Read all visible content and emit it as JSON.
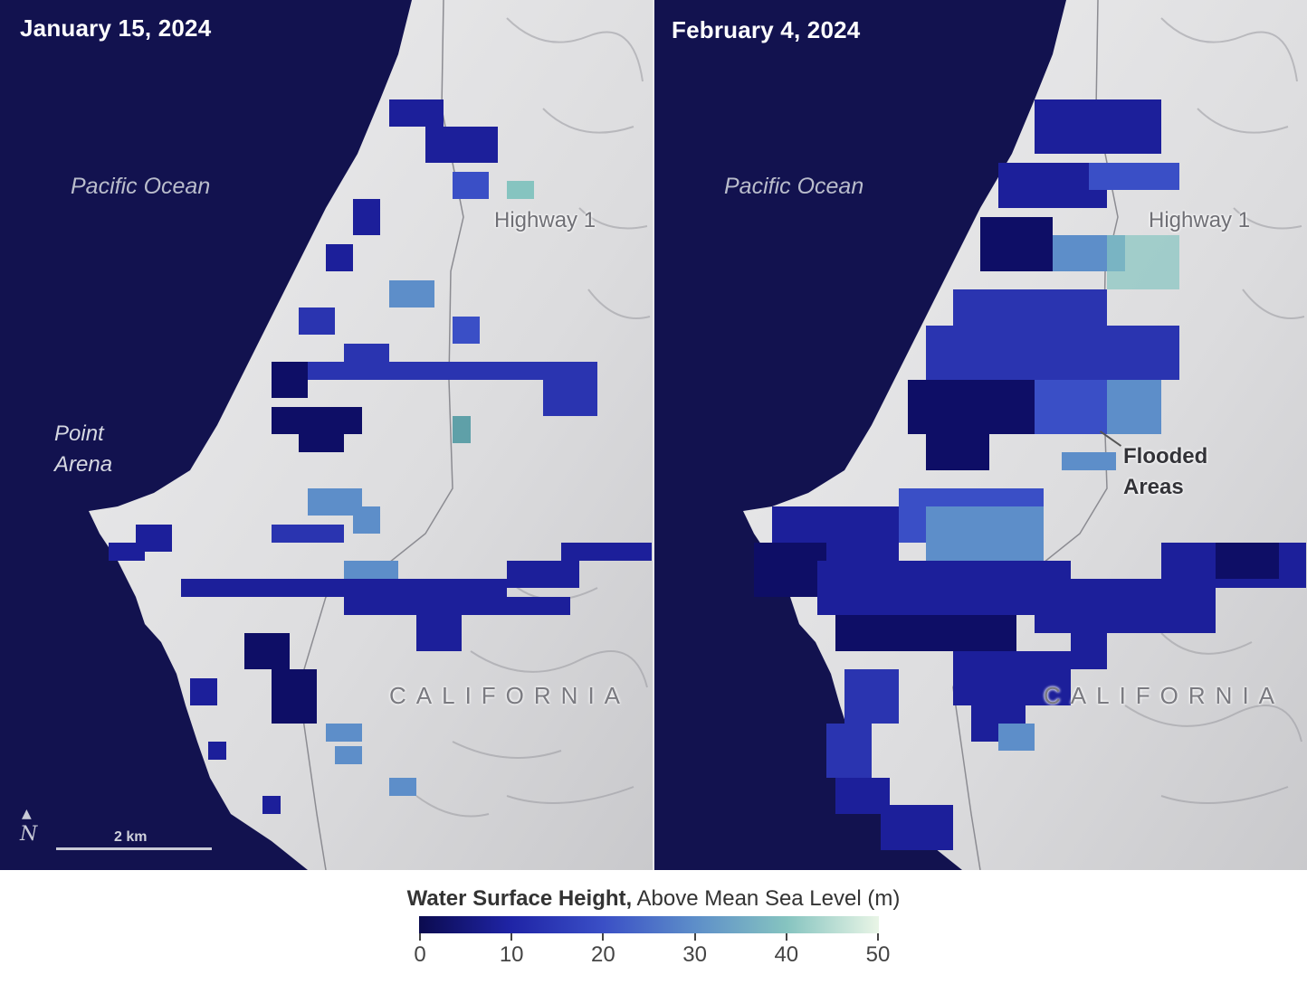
{
  "panels": [
    {
      "date": "January 15, 2024",
      "ocean_label": "Pacific Ocean",
      "highway_label": "Highway 1",
      "state_label": "CALIFORNIA",
      "point_label_1": "Point",
      "point_label_2": "Arena",
      "scale_label": "2 km",
      "north_label": "N"
    },
    {
      "date": "February 4, 2024",
      "ocean_label": "Pacific Ocean",
      "highway_label": "Highway 1",
      "state_label": "CALIFORNIA",
      "flooded_label_1": "Flooded",
      "flooded_label_2": "Areas"
    }
  ],
  "legend": {
    "title_bold": "Water Surface Height,",
    "title_rest": " Above Mean Sea Level (m)",
    "ticks": [
      "0",
      "10",
      "20",
      "30",
      "40",
      "50"
    ],
    "min": 0,
    "max": 50,
    "colors": [
      "#0b0b4f",
      "#1f24a6",
      "#3a4fc6",
      "#5d8ec9",
      "#86c4c0",
      "#e9f5e6"
    ]
  },
  "colors": {
    "ocean": "#12124f",
    "land": "#dedee0"
  }
}
